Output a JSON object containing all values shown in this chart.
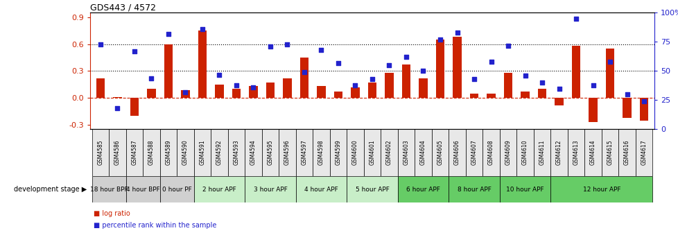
{
  "title": "GDS443 / 4572",
  "samples": [
    "GSM4585",
    "GSM4586",
    "GSM4587",
    "GSM4588",
    "GSM4589",
    "GSM4590",
    "GSM4591",
    "GSM4592",
    "GSM4593",
    "GSM4594",
    "GSM4595",
    "GSM4596",
    "GSM4597",
    "GSM4598",
    "GSM4599",
    "GSM4600",
    "GSM4601",
    "GSM4602",
    "GSM4603",
    "GSM4604",
    "GSM4605",
    "GSM4606",
    "GSM4607",
    "GSM4608",
    "GSM4609",
    "GSM4610",
    "GSM4611",
    "GSM4612",
    "GSM4613",
    "GSM4614",
    "GSM4615",
    "GSM4616",
    "GSM4617"
  ],
  "log_ratio": [
    0.22,
    0.01,
    -0.2,
    0.1,
    0.6,
    0.09,
    0.75,
    0.15,
    0.1,
    0.13,
    0.17,
    0.22,
    0.45,
    0.13,
    0.07,
    0.12,
    0.17,
    0.28,
    0.37,
    0.22,
    0.65,
    0.68,
    0.05,
    0.05,
    0.28,
    0.07,
    0.1,
    -0.08,
    0.58,
    -0.27,
    0.55,
    -0.22,
    -0.25
  ],
  "percentile": [
    73,
    18,
    67,
    44,
    82,
    32,
    86,
    47,
    38,
    36,
    71,
    73,
    49,
    68,
    57,
    38,
    43,
    55,
    62,
    50,
    77,
    83,
    43,
    58,
    72,
    46,
    40,
    35,
    95,
    38,
    58,
    30,
    24
  ],
  "stages": [
    {
      "label": "18 hour BPF",
      "start": 0,
      "end": 2,
      "color": "#d0d0d0"
    },
    {
      "label": "4 hour BPF",
      "start": 2,
      "end": 4,
      "color": "#d0d0d0"
    },
    {
      "label": "0 hour PF",
      "start": 4,
      "end": 6,
      "color": "#d0d0d0"
    },
    {
      "label": "2 hour APF",
      "start": 6,
      "end": 9,
      "color": "#c8eec8"
    },
    {
      "label": "3 hour APF",
      "start": 9,
      "end": 12,
      "color": "#c8eec8"
    },
    {
      "label": "4 hour APF",
      "start": 12,
      "end": 15,
      "color": "#c8eec8"
    },
    {
      "label": "5 hour APF",
      "start": 15,
      "end": 18,
      "color": "#c8eec8"
    },
    {
      "label": "6 hour APF",
      "start": 18,
      "end": 21,
      "color": "#66cc66"
    },
    {
      "label": "8 hour APF",
      "start": 21,
      "end": 24,
      "color": "#66cc66"
    },
    {
      "label": "10 hour APF",
      "start": 24,
      "end": 27,
      "color": "#66cc66"
    },
    {
      "label": "12 hour APF",
      "start": 27,
      "end": 33,
      "color": "#66cc66"
    }
  ],
  "bar_color": "#cc2200",
  "dot_color": "#2222cc",
  "ylim_left": [
    -0.35,
    0.95
  ],
  "ylim_right": [
    0,
    100
  ],
  "yticks_left": [
    -0.3,
    0.0,
    0.3,
    0.6,
    0.9
  ],
  "yticks_right": [
    0,
    25,
    50,
    75,
    100
  ],
  "hlines": [
    0.3,
    0.6
  ]
}
